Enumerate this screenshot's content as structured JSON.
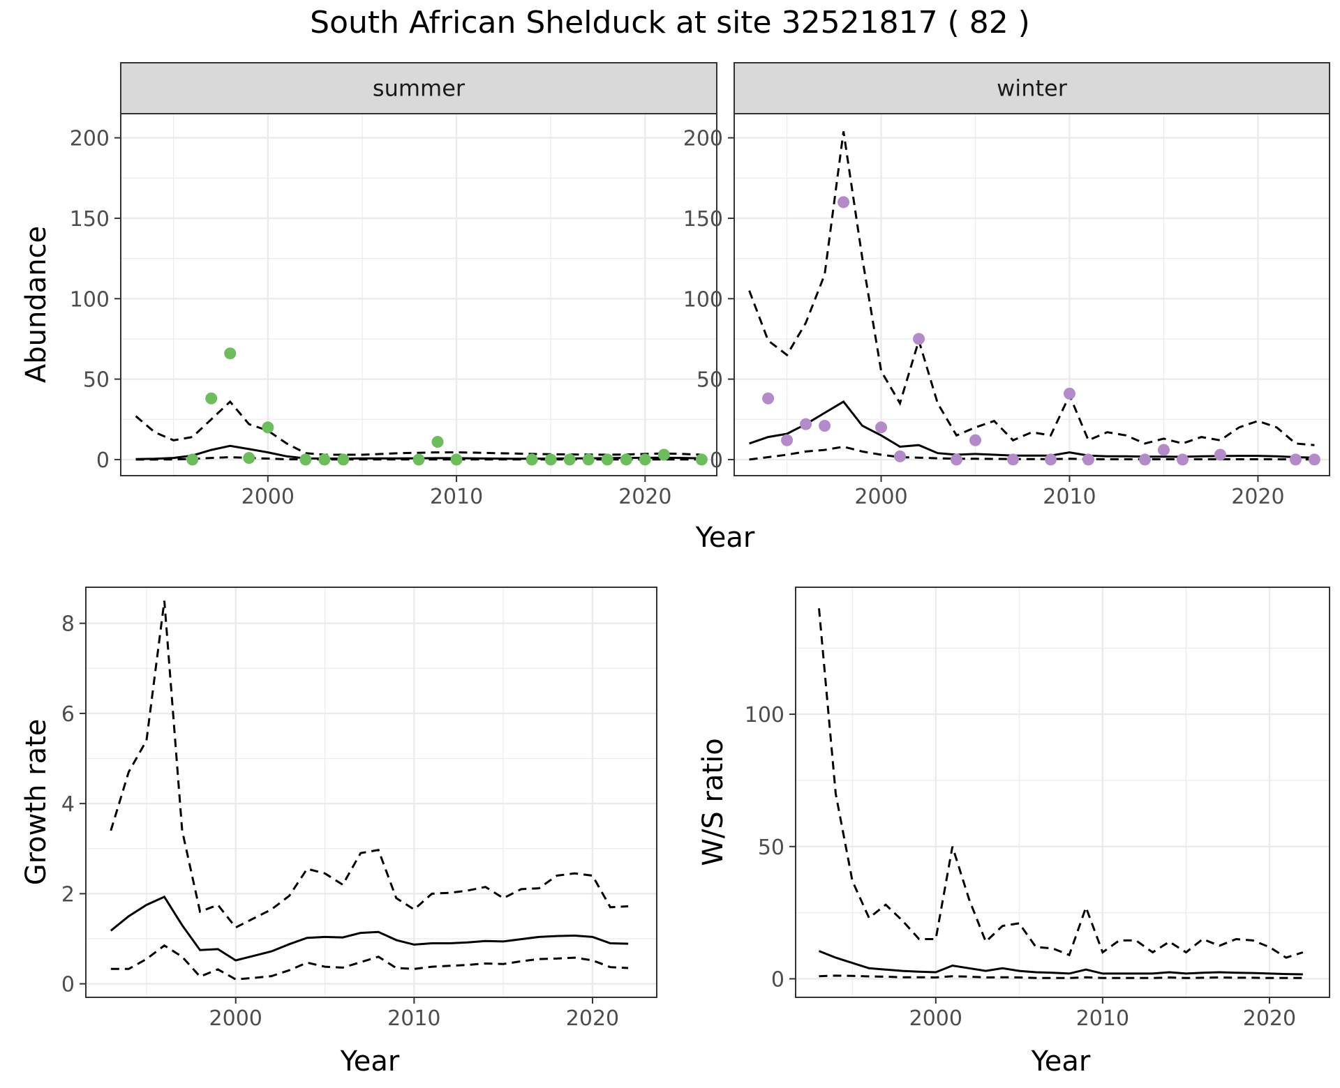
{
  "figure": {
    "title": "South African Shelduck at site 32521817 ( 82 )"
  },
  "colors": {
    "summer_points": "#6cbd5c",
    "winter_points": "#b28bc8",
    "line": "#000000",
    "strip_fill": "#d9d9d9",
    "grid": "#ebebeb"
  },
  "chart_data": [
    {
      "type": "line",
      "title": "summer",
      "xlabel": "Year",
      "ylabel": "Abundance",
      "xlim": [
        1992.2,
        2023.8
      ],
      "ylim": [
        -10,
        215
      ],
      "xticks": [
        2000,
        2010,
        2020
      ],
      "yticks": [
        0,
        50,
        100,
        150,
        200
      ],
      "grid": true,
      "observed_points": {
        "x": [
          1996,
          1997,
          1998,
          1999,
          2000,
          2002,
          2003,
          2004,
          2008,
          2009,
          2010,
          2014,
          2015,
          2016,
          2017,
          2018,
          2019,
          2020,
          2021,
          2023
        ],
        "y": [
          0,
          38,
          66,
          1,
          20,
          0,
          0,
          0,
          0,
          11,
          0,
          0,
          0,
          0,
          0,
          0,
          0,
          0,
          3,
          0
        ]
      },
      "series": [
        {
          "x": [
            1993,
            1994,
            1995,
            1996,
            1997,
            1998,
            1999,
            2000,
            2001,
            2002,
            2003,
            2004,
            2005,
            2006,
            2007,
            2008,
            2009,
            2010,
            2011,
            2012,
            2013,
            2014,
            2015,
            2016,
            2017,
            2018,
            2019,
            2020,
            2021,
            2022,
            2023
          ],
          "y": [
            0.3,
            0.5,
            1,
            2.5,
            6,
            8.5,
            6.5,
            4.5,
            2,
            0.7,
            0.6,
            0.6,
            0.7,
            0.7,
            0.7,
            0.8,
            0.9,
            0.9,
            0.7,
            0.6,
            0.5,
            0.5,
            0.6,
            0.7,
            0.8,
            0.9,
            1,
            1.1,
            1.2,
            1,
            0.8
          ]
        },
        {
          "x": [
            1993,
            1994,
            1995,
            1996,
            1997,
            1998,
            1999,
            2000,
            2001,
            2002,
            2003,
            2004,
            2005,
            2006,
            2007,
            2008,
            2009,
            2010,
            2011,
            2012,
            2013,
            2014,
            2015,
            2016,
            2017,
            2018,
            2019,
            2020,
            2021,
            2022,
            2023
          ],
          "y": [
            27,
            17,
            12,
            14,
            25,
            36,
            22,
            18,
            10,
            4,
            3,
            3,
            3,
            3.5,
            4,
            4.2,
            4.5,
            4.5,
            4.3,
            4,
            3.8,
            3.5,
            3.3,
            3.2,
            3.1,
            3,
            3.2,
            3.5,
            3.8,
            3.5,
            3
          ]
        },
        {
          "x": [
            1993,
            1994,
            1995,
            1996,
            1997,
            1998,
            1999,
            2000,
            2001,
            2002,
            2003,
            2004,
            2005,
            2006,
            2007,
            2008,
            2009,
            2010,
            2011,
            2012,
            2013,
            2014,
            2015,
            2016,
            2017,
            2018,
            2019,
            2020,
            2021,
            2022,
            2023
          ],
          "y": [
            0,
            0,
            0.1,
            0.4,
            1,
            1.5,
            1,
            0.6,
            0.2,
            0.05,
            0.05,
            0.05,
            0.05,
            0.05,
            0.05,
            0.1,
            0.1,
            0.1,
            0.05,
            0.05,
            0.05,
            0.05,
            0.05,
            0.05,
            0.05,
            0.05,
            0.05,
            0.05,
            0.05,
            0.05,
            0.05
          ]
        }
      ]
    },
    {
      "type": "line",
      "title": "winter",
      "xlabel": "Year",
      "ylabel": "",
      "xlim": [
        1992.2,
        2023.8
      ],
      "ylim": [
        -10,
        215
      ],
      "xticks": [
        2000,
        2010,
        2020
      ],
      "yticks": [
        0,
        50,
        100,
        150,
        200
      ],
      "grid": true,
      "observed_points": {
        "x": [
          1994,
          1995,
          1996,
          1997,
          1998,
          2000,
          2001,
          2002,
          2004,
          2005,
          2007,
          2009,
          2010,
          2011,
          2014,
          2015,
          2016,
          2018,
          2022,
          2023
        ],
        "y": [
          38,
          12,
          22,
          21,
          160,
          20,
          2,
          75,
          0,
          12,
          0,
          0,
          41,
          0,
          0,
          6,
          0,
          3,
          0,
          0
        ]
      },
      "series": [
        {
          "x": [
            1993,
            1994,
            1995,
            1996,
            1997,
            1998,
            1999,
            2000,
            2001,
            2002,
            2003,
            2004,
            2005,
            2006,
            2007,
            2008,
            2009,
            2010,
            2011,
            2012,
            2013,
            2014,
            2015,
            2016,
            2017,
            2018,
            2019,
            2020,
            2021,
            2022,
            2023
          ],
          "y": [
            10,
            14,
            16,
            22,
            29,
            36,
            21,
            15,
            8,
            9,
            4,
            3,
            3.5,
            3,
            2.5,
            2.5,
            2.5,
            4.5,
            2.5,
            2,
            2,
            1.8,
            1.8,
            1.7,
            2,
            2.2,
            2.3,
            2.3,
            2,
            1.5,
            1.2
          ]
        },
        {
          "x": [
            1993,
            1994,
            1995,
            1996,
            1997,
            1998,
            1999,
            2000,
            2001,
            2002,
            2003,
            2004,
            2005,
            2006,
            2007,
            2008,
            2009,
            2010,
            2011,
            2012,
            2013,
            2014,
            2015,
            2016,
            2017,
            2018,
            2019,
            2020,
            2021,
            2022,
            2023
          ],
          "y": [
            105,
            74,
            65,
            85,
            115,
            204,
            125,
            55,
            35,
            74,
            35,
            15,
            20,
            24,
            12,
            17,
            15,
            40,
            12,
            17,
            15,
            10,
            13,
            10,
            14,
            12,
            20,
            24,
            20,
            10,
            9
          ]
        },
        {
          "x": [
            1993,
            1994,
            1995,
            1996,
            1997,
            1998,
            1999,
            2000,
            2001,
            2002,
            2003,
            2004,
            2005,
            2006,
            2007,
            2008,
            2009,
            2010,
            2011,
            2012,
            2013,
            2014,
            2015,
            2016,
            2017,
            2018,
            2019,
            2020,
            2021,
            2022,
            2023
          ],
          "y": [
            0,
            1.5,
            3,
            5,
            6,
            8,
            5,
            3,
            1.5,
            1.2,
            0.8,
            0.5,
            0.5,
            0.4,
            0.3,
            0.3,
            0.3,
            0.5,
            0.3,
            0.2,
            0.2,
            0.2,
            0.2,
            0.2,
            0.2,
            0.2,
            0.2,
            0.2,
            0.2,
            0.1,
            0.1
          ]
        }
      ]
    },
    {
      "type": "line",
      "title": "",
      "xlabel": "Year",
      "ylabel": "Growth rate",
      "xlim": [
        1991.6,
        2023.6
      ],
      "ylim": [
        -0.3,
        8.8
      ],
      "xticks": [
        2000,
        2010,
        2020
      ],
      "yticks": [
        0,
        2,
        4,
        6,
        8
      ],
      "grid": true,
      "series": [
        {
          "x": [
            1993,
            1994,
            1995,
            1996,
            1997,
            1998,
            1999,
            2000,
            2001,
            2002,
            2003,
            2004,
            2005,
            2006,
            2007,
            2008,
            2009,
            2010,
            2011,
            2012,
            2013,
            2014,
            2015,
            2016,
            2017,
            2018,
            2019,
            2020,
            2021,
            2022
          ],
          "y": [
            1.18,
            1.5,
            1.75,
            1.93,
            1.3,
            0.75,
            0.77,
            0.52,
            0.62,
            0.72,
            0.88,
            1.02,
            1.04,
            1.03,
            1.13,
            1.15,
            0.97,
            0.87,
            0.9,
            0.9,
            0.92,
            0.95,
            0.94,
            0.99,
            1.04,
            1.06,
            1.07,
            1.04,
            0.9,
            0.89
          ]
        },
        {
          "x": [
            1993,
            1994,
            1995,
            1996,
            1997,
            1998,
            1999,
            2000,
            2001,
            2002,
            2003,
            2004,
            2005,
            2006,
            2007,
            2008,
            2009,
            2010,
            2011,
            2012,
            2013,
            2014,
            2015,
            2016,
            2017,
            2018,
            2019,
            2020,
            2021,
            2022
          ],
          "y": [
            3.4,
            4.7,
            5.4,
            8.5,
            3.4,
            1.6,
            1.75,
            1.25,
            1.45,
            1.65,
            1.95,
            2.55,
            2.45,
            2.2,
            2.9,
            2.97,
            1.9,
            1.65,
            2,
            2.02,
            2.07,
            2.15,
            1.9,
            2.1,
            2.12,
            2.4,
            2.45,
            2.4,
            1.7,
            1.72
          ]
        },
        {
          "x": [
            1993,
            1994,
            1995,
            1996,
            1997,
            1998,
            1999,
            2000,
            2001,
            2002,
            2003,
            2004,
            2005,
            2006,
            2007,
            2008,
            2009,
            2010,
            2011,
            2012,
            2013,
            2014,
            2015,
            2016,
            2017,
            2018,
            2019,
            2020,
            2021,
            2022
          ],
          "y": [
            0.33,
            0.33,
            0.55,
            0.85,
            0.6,
            0.16,
            0.32,
            0.1,
            0.13,
            0.17,
            0.3,
            0.47,
            0.38,
            0.36,
            0.48,
            0.6,
            0.35,
            0.33,
            0.38,
            0.4,
            0.42,
            0.45,
            0.44,
            0.5,
            0.55,
            0.56,
            0.58,
            0.52,
            0.37,
            0.35
          ]
        }
      ]
    },
    {
      "type": "line",
      "title": "",
      "xlabel": "Year",
      "ylabel": "W/S ratio",
      "xlim": [
        1991.6,
        2023.6
      ],
      "ylim": [
        -7,
        148
      ],
      "xticks": [
        2000,
        2010,
        2020
      ],
      "yticks": [
        0,
        50,
        100
      ],
      "grid": true,
      "series": [
        {
          "x": [
            1993,
            1994,
            1995,
            1996,
            1997,
            1998,
            1999,
            2000,
            2001,
            2002,
            2003,
            2004,
            2005,
            2006,
            2007,
            2008,
            2009,
            2010,
            2011,
            2012,
            2013,
            2014,
            2015,
            2016,
            2017,
            2018,
            2019,
            2020,
            2021,
            2022
          ],
          "y": [
            10.5,
            8,
            6,
            4,
            3.5,
            3,
            2.7,
            2.5,
            5,
            4,
            3,
            4,
            3,
            2.5,
            2.3,
            2,
            3.5,
            2,
            2,
            2,
            2,
            2.5,
            2,
            2.3,
            2.5,
            2.3,
            2.2,
            2,
            1.8,
            1.7
          ]
        },
        {
          "x": [
            1993,
            1994,
            1995,
            1996,
            1997,
            1998,
            1999,
            2000,
            2001,
            2002,
            2003,
            2004,
            2005,
            2006,
            2007,
            2008,
            2009,
            2010,
            2011,
            2012,
            2013,
            2014,
            2015,
            2016,
            2017,
            2018,
            2019,
            2020,
            2021,
            2022
          ],
          "y": [
            140,
            70,
            37,
            23,
            28,
            22,
            15,
            15,
            50,
            30,
            14,
            20,
            21,
            12,
            11.5,
            9,
            27,
            10,
            14.5,
            14.5,
            10,
            14,
            10,
            15,
            12.5,
            15,
            14.5,
            12,
            8,
            10
          ]
        },
        {
          "x": [
            1993,
            1994,
            1995,
            1996,
            1997,
            1998,
            1999,
            2000,
            2001,
            2002,
            2003,
            2004,
            2005,
            2006,
            2007,
            2008,
            2009,
            2010,
            2011,
            2012,
            2013,
            2014,
            2015,
            2016,
            2017,
            2018,
            2019,
            2020,
            2021,
            2022
          ],
          "y": [
            1,
            1.2,
            1.1,
            0.9,
            0.8,
            0.6,
            0.6,
            0.5,
            1,
            0.8,
            0.5,
            0.6,
            0.5,
            0.3,
            0.3,
            0.3,
            0.6,
            0.3,
            0.3,
            0.3,
            0.3,
            0.5,
            0.3,
            0.4,
            0.5,
            0.4,
            0.4,
            0.3,
            0.3,
            0.3
          ]
        }
      ]
    }
  ]
}
